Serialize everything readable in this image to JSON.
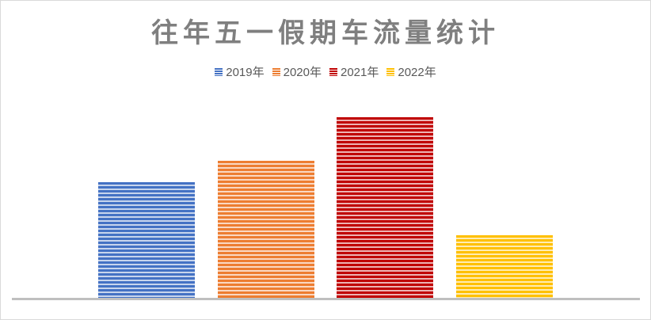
{
  "chart_data": {
    "type": "bar",
    "title": "往年五一假期车流量统计",
    "categories": [
      "2019年",
      "2020年",
      "2021年",
      "2022年"
    ],
    "series": [
      {
        "name": "2019年",
        "values": [
          147
        ],
        "color": "#4472c4"
      },
      {
        "name": "2020年",
        "values": [
          174
        ],
        "color": "#ed7d31"
      },
      {
        "name": "2021年",
        "values": [
          229
        ],
        "color": "#c00000"
      },
      {
        "name": "2022年",
        "values": [
          80
        ],
        "color": "#ffc000"
      }
    ],
    "values": [
      147,
      174,
      229,
      80
    ],
    "xlabel": "",
    "ylabel": "",
    "ylim": [
      0,
      250
    ],
    "grid": false,
    "legend_position": "top",
    "note": "No axis ticks or data labels shown; values are relative bar heights in pixels"
  },
  "title": "往年五一假期车流量统计",
  "legend": [
    {
      "label": "2019年",
      "color": "#4472c4"
    },
    {
      "label": "2020年",
      "color": "#ed7d31"
    },
    {
      "label": "2021年",
      "color": "#c00000"
    },
    {
      "label": "2022年",
      "color": "#ffc000"
    }
  ]
}
